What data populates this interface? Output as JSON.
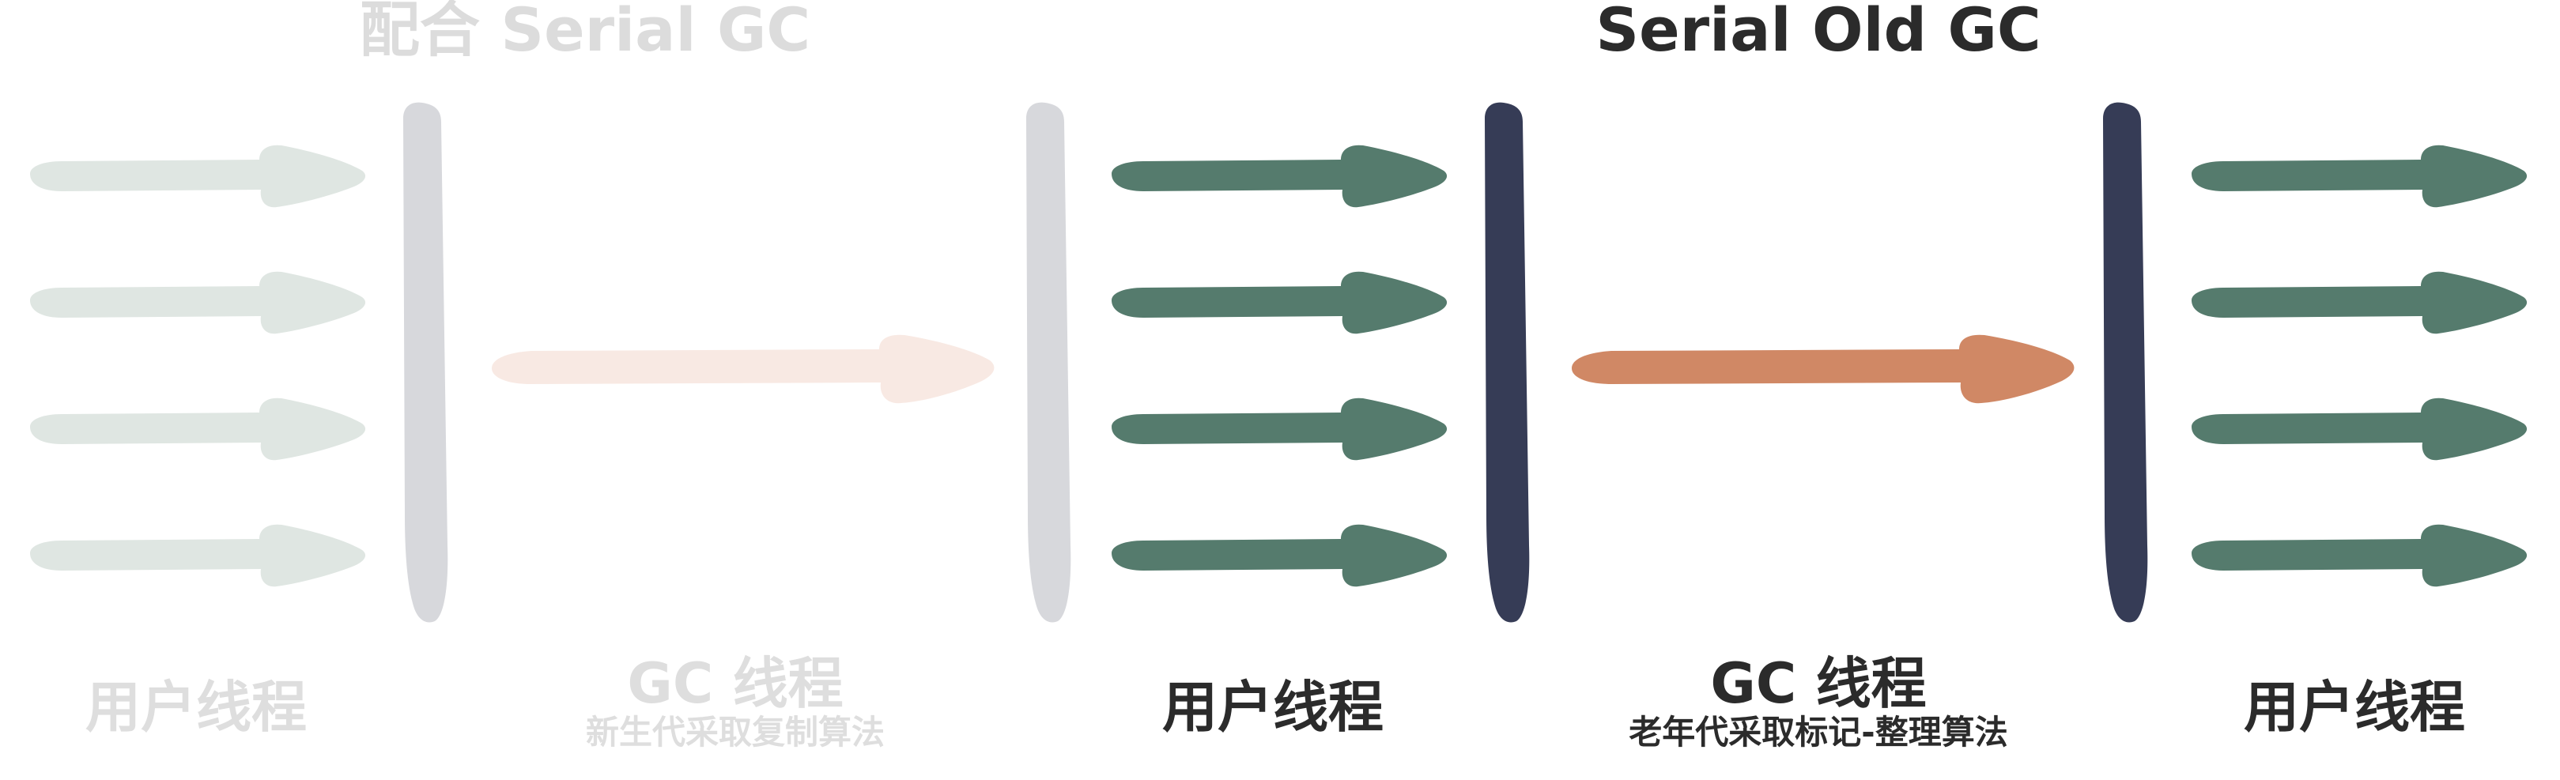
{
  "titles": {
    "left": "配合 Serial GC",
    "right": "Serial Old GC"
  },
  "labels": {
    "user_thread": "用户线程",
    "gc_thread": "GC 线程",
    "young_gen_algo": "新生代采取复制算法",
    "old_gen_algo": "老年代采取标记-整理算法"
  },
  "colors": {
    "faded_arrow": "#dfe6e2",
    "faded_bar": "#d7d8dc",
    "faded_gc_arrow": "#f8e9e3",
    "user_arrow": "#557b6d",
    "safepoint_bar": "#363c56",
    "gc_arrow": "#d08865",
    "faded_text": "#dcdcdc",
    "main_text": "#2b2b2b"
  }
}
